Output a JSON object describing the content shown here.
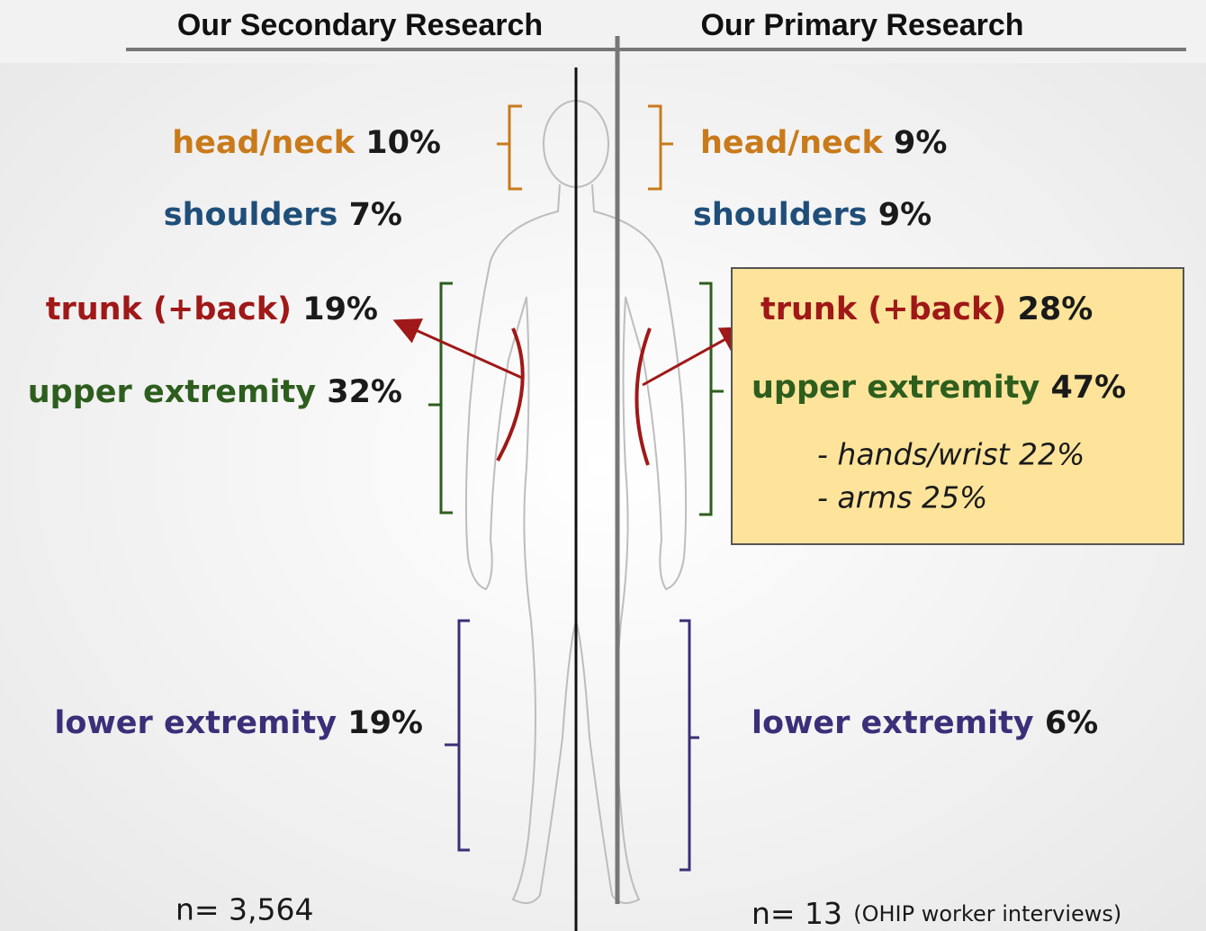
{
  "headers": {
    "left": "Our Secondary Research",
    "right": "Our Primary Research"
  },
  "left": {
    "regions": [
      {
        "label": "head/neck",
        "value": "10%"
      },
      {
        "label": "shoulders",
        "value": "7%"
      },
      {
        "label": "trunk (+back)",
        "value": "19%"
      },
      {
        "label": "upper extremity",
        "value": "32%"
      },
      {
        "label": "lower extremity",
        "value": "19%"
      }
    ],
    "n": "n= 3,564"
  },
  "right": {
    "regions": [
      {
        "label": "head/neck",
        "value": "9%"
      },
      {
        "label": "shoulders",
        "value": "9%"
      },
      {
        "label": "trunk (+back)",
        "value": "28%"
      },
      {
        "label": "upper extremity",
        "value": "47%"
      },
      {
        "label": "lower extremity",
        "value": "6%"
      }
    ],
    "details": [
      "- hands/wrist 22%",
      "- arms 25%"
    ],
    "n": "n= 13",
    "note": "(OHIP worker interviews)"
  }
}
